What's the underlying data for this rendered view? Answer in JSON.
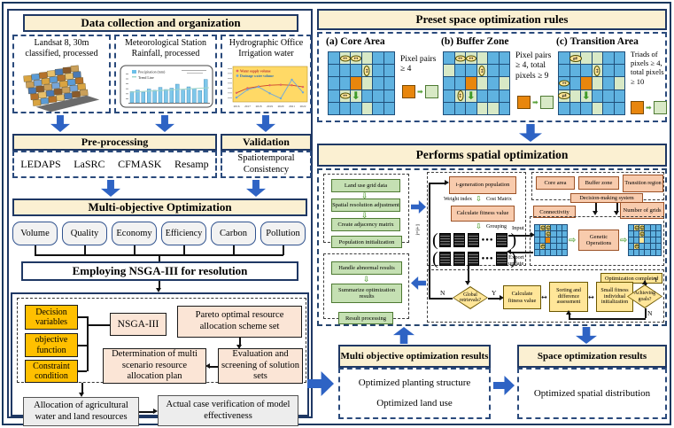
{
  "colors": {
    "beige": "#fbf0d2",
    "navy": "#1f3864",
    "arrow_blue": "#2e63c4",
    "orange": "#ffc000",
    "peach": "#fbe5d6",
    "salmon": "#f8cbad",
    "green": "#c5e0b3",
    "yellow": "#ffe699",
    "grid_blue": "#5fb2e0",
    "grid_green": "#d8e9c6",
    "grid_orange": "#e8860d",
    "gray": "#ededed"
  },
  "left": {
    "header": "Data collection and organization",
    "sources": [
      {
        "line1": "Landsat 8, 30m",
        "line2": "classified, processed"
      },
      {
        "line1": "Meteorological Station",
        "line2": "Rainfall, processed",
        "legend": [
          "Precipitation (mm)",
          "Trend Line"
        ],
        "bars": [
          42,
          48,
          40,
          52,
          47,
          58,
          50,
          55,
          70,
          48,
          60,
          53,
          46,
          88
        ]
      },
      {
        "line1": "Hydrographic Office",
        "line2": "Irrigation water",
        "legend": [
          "Water supply volume",
          "Drainage water volume"
        ],
        "years": [
          "2016",
          "2017",
          "2018",
          "2019",
          "2020",
          "2021",
          "2022"
        ],
        "supply": [
          30,
          52,
          60,
          66,
          68,
          66,
          58
        ],
        "drainage": [
          8,
          45,
          58,
          28,
          4,
          92,
          32
        ]
      }
    ],
    "preprocessing": {
      "header": "Pre-processing",
      "items": [
        "LEDAPS",
        "LaSRC",
        "CFMASK",
        "Resamp"
      ]
    },
    "validation": {
      "header": "Validation",
      "line1": "Spatiotemporal",
      "line2": "Consistency"
    },
    "multi_objective": {
      "header": "Multi-objective Optimization",
      "objectives": [
        "Volume",
        "Quality",
        "Economy",
        "Efficiency",
        "Carbon",
        "Pollution"
      ]
    },
    "banner": "Employing NSGA-III for resolution",
    "nsga": {
      "decision": "Decision variables",
      "objective": "objective function",
      "constraint": "Constraint condition",
      "algo": "NSGA-III",
      "pareto": "Pareto optimal resource allocation scheme set",
      "determination": "Determination of multi scenario resource allocation plan",
      "evaluation": "Evaluation and screening of solution sets"
    },
    "outputs": {
      "allocation": "Allocation of agricultural water and land resources",
      "verification": "Actual case verification of model effectiveness"
    }
  },
  "right": {
    "preset": {
      "header": "Preset space optimization rules",
      "rules": [
        {
          "tag": "(a)",
          "name": "Core Area",
          "rule": "Pixel pairs ≥ 4",
          "grid": {
            "cells": [
              "BGGGBB",
              "BBBGBB",
              "BBOGBB",
              "BGGBBB",
              "BBBGBB"
            ],
            "overlays": [
              {
                "r": 0,
                "c": 1,
                "t": "h"
              },
              {
                "r": 0,
                "c": 2,
                "t": "h"
              },
              {
                "r": 1,
                "c": 3,
                "t": "v"
              },
              {
                "r": 3,
                "c": 1,
                "t": "h"
              },
              {
                "r": 3,
                "c": 2,
                "t": "down"
              }
            ]
          }
        },
        {
          "tag": "(b)",
          "name": "Buffer Zone",
          "rule": "Pixel pairs ≥ 4, total pixels ≥ 9",
          "grid": {
            "cells": [
              "BGGGBB",
              "GBBGBB",
              "BBOGBG",
              "BGGBBB",
              "BBBGGB"
            ],
            "overlays": [
              {
                "r": 0,
                "c": 1,
                "t": "h"
              },
              {
                "r": 0,
                "c": 2,
                "t": "h"
              },
              {
                "r": 1,
                "c": 3,
                "t": "v"
              },
              {
                "r": 3,
                "c": 1,
                "t": "v"
              },
              {
                "r": 3,
                "c": 2,
                "t": "down"
              }
            ]
          }
        },
        {
          "tag": "(c)",
          "name": "Transition Area",
          "rule": "Triads of pixels ≥ 4, total pixels ≥ 10",
          "grid": {
            "cells": [
              "BGGGBB",
              "BBBGBB",
              "BBOGBG",
              "GGGBBB",
              "BBBGBB"
            ],
            "overlays": [
              {
                "r": 0,
                "c": 1,
                "t": "x"
              },
              {
                "r": 1,
                "c": 3,
                "t": "v"
              },
              {
                "r": 2,
                "c": 0,
                "t": "h"
              },
              {
                "r": 3,
                "c": 0,
                "t": "x"
              },
              {
                "r": 3,
                "c": 2,
                "t": "down"
              }
            ]
          }
        }
      ]
    },
    "spatial": {
      "header": "Performs spatial optimization",
      "prep": [
        "Land use grid data",
        "Spatial resolution adjustment",
        "Create adjacency matrix",
        "Population initialization"
      ],
      "ga": {
        "igen": "i-generation population",
        "weight": "Weight index",
        "cost": "Cost Matrix",
        "calc": "Calculate fitness value",
        "grouping": "Grouping",
        "input": "Input",
        "export1": "Export",
        "export2": "update",
        "loop": "i=i+1"
      },
      "rules": {
        "core": "Core area",
        "buffer": "Buffer zone",
        "transition": "Transition region",
        "decision": "Decision-making system",
        "connectivity": "Connectivity",
        "grids": "Number of grids",
        "genetic": "Genetic Operations",
        "grid_before": {
          "cells": [
            "BYYBBB",
            "BBYBBB",
            "BBOBBB",
            "BYBBBB",
            "BBBBBB"
          ],
          "overlays": [
            {
              "r": 0,
              "c": 1,
              "t": "plus"
            },
            {
              "r": 0,
              "c": 2,
              "t": "plus"
            },
            {
              "r": 1,
              "c": 2,
              "t": "plus"
            },
            {
              "r": 3,
              "c": 1,
              "t": "plus"
            }
          ]
        },
        "grid_after": {
          "cells": [
            "BYYBBB",
            "BBYBBB",
            "BBYBBB",
            "BYBBBB",
            "BBBBBB"
          ],
          "overlays": [
            {
              "r": 0,
              "c": 1,
              "t": "plus"
            },
            {
              "r": 0,
              "c": 2,
              "t": "plus"
            },
            {
              "r": 1,
              "c": 2,
              "t": "plus"
            },
            {
              "r": 3,
              "c": 1,
              "t": "plus"
            }
          ]
        }
      },
      "flow": {
        "global": "Global retrievals?",
        "calc": "Calculate fitness value",
        "sorting": "Sorting and difference assessment",
        "small": "Small fitness individual initialization",
        "achieving": "Achieving goals?",
        "completed": "Optimization completed",
        "y": "Y",
        "n": "N"
      },
      "post": [
        "Handle abnormal results",
        "Summarize optimization results",
        "Result processing"
      ]
    },
    "results": {
      "multi": {
        "header": "Multi objective optimization results",
        "items": [
          "Optimized planting structure",
          "Optimized land use"
        ]
      },
      "space": {
        "header": "Space optimization results",
        "items": [
          "Optimized spatial distribution"
        ]
      }
    }
  }
}
